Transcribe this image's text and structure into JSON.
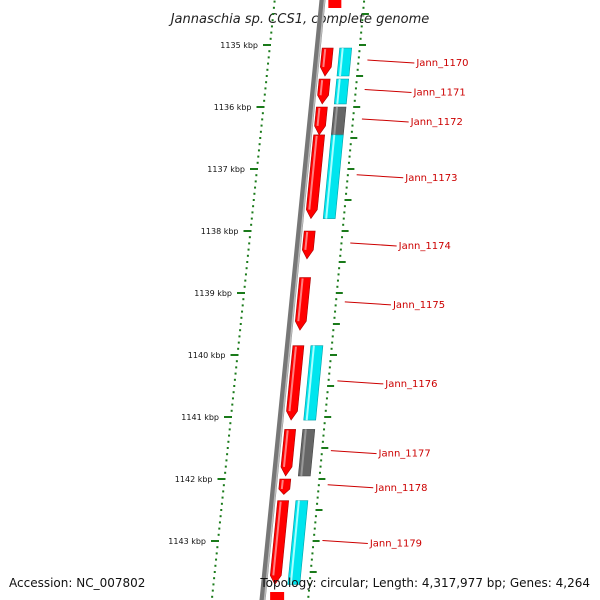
{
  "title": "Jannaschia sp. CCS1, complete genome",
  "footer": {
    "accession": "Accession: NC_007802",
    "topology": "Topology: circular; Length: 4,317,977 bp; Genes: 4,264"
  },
  "colors": {
    "backbone": "#777777",
    "tick": "#1a7a1a",
    "cds": "#ff0000",
    "gene_hit": "#00e5ee",
    "gene_other": "#666666",
    "label": "#cc0000"
  },
  "kbp_ticks": [
    "1135 kbp",
    "1136 kbp",
    "1137 kbp",
    "1138 kbp",
    "1139 kbp",
    "1140 kbp",
    "1141 kbp",
    "1142 kbp",
    "1143 kbp"
  ],
  "genes": [
    {
      "label": "Jann_1170",
      "start": 0.05,
      "end": 0.5,
      "partner": "cyan"
    },
    {
      "label": "Jann_1171",
      "start": 0.55,
      "end": 0.95,
      "partner": "cyan"
    },
    {
      "label": "Jann_1172",
      "start": 1.0,
      "end": 1.45,
      "partner": "grey"
    },
    {
      "label": "Jann_1173",
      "start": 1.45,
      "end": 2.8,
      "partner": "cyan"
    },
    {
      "label": "Jann_1174",
      "start": 3.0,
      "end": 3.45,
      "partner": null
    },
    {
      "label": "Jann_1175",
      "start": 3.75,
      "end": 4.6,
      "partner": null
    },
    {
      "label": "Jann_1176",
      "start": 4.85,
      "end": 6.05,
      "partner": "cyan"
    },
    {
      "label": "Jann_1177",
      "start": 6.2,
      "end": 6.95,
      "partner": "grey"
    },
    {
      "label": "Jann_1178",
      "start": 7.0,
      "end": 7.25,
      "partner": null
    },
    {
      "label": "Jann_1179",
      "start": 7.35,
      "end": 8.7,
      "partner": "cyan"
    }
  ]
}
